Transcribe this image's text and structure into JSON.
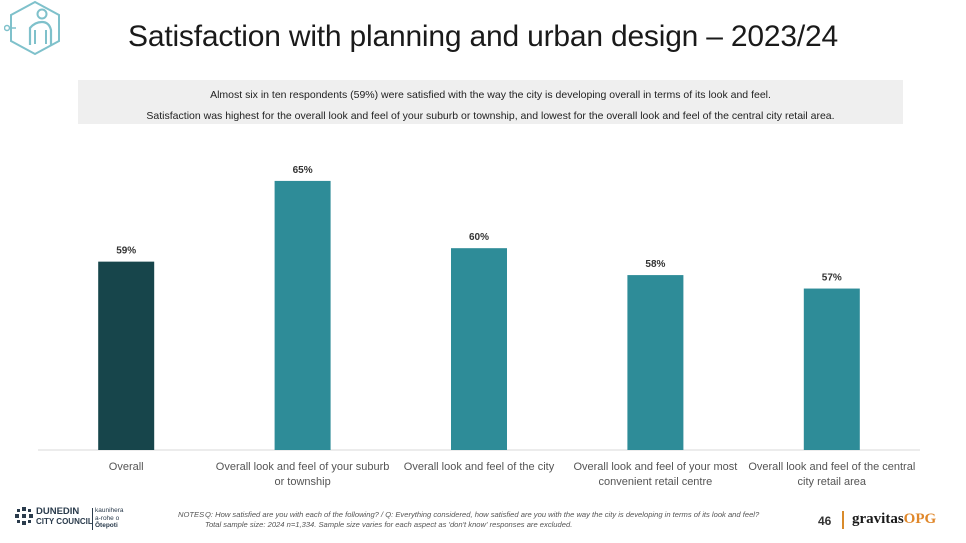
{
  "title": "Satisfaction with planning and urban design – 2023/24",
  "summary": {
    "line1": "Almost six in ten respondents (59%) were satisfied with the way the city is developing overall in terms of its look and feel.",
    "line2": "Satisfaction was highest for the overall look and feel of your suburb or township, and lowest for the overall look and feel of the central city retail area."
  },
  "chart_data": {
    "type": "bar",
    "categories": [
      [
        "Overall"
      ],
      [
        "Overall look and feel of your suburb",
        "or township"
      ],
      [
        "Overall look and feel of the city"
      ],
      [
        "Overall look and feel of your most",
        "convenient retail centre"
      ],
      [
        "Overall look and feel of the central",
        "city retail area"
      ]
    ],
    "values": [
      59,
      65,
      60,
      58,
      57
    ],
    "data_labels": [
      "59%",
      "65%",
      "60%",
      "58%",
      "57%"
    ],
    "colors": [
      "#17454b",
      "#2e8c98",
      "#2e8c98",
      "#2e8c98",
      "#2e8c98"
    ],
    "ylim": [
      45,
      67
    ],
    "grid": false,
    "legend": "none"
  },
  "notes": {
    "label": "NOTES",
    "line1": "Q: How satisfied are you with each of the following?  /  Q: Everything considered, how satisfied are you with the way the city is developing in terms of its look and feel?",
    "line2": "Total sample size: 2024 n=1,334. Sample size varies  for each aspect as 'don't know' responses are excluded."
  },
  "footer": {
    "page_number": "46",
    "brand_main": "gravitas",
    "brand_accent": "OPG",
    "council_line1": "DUNEDIN",
    "council_line2": "CITY COUNCIL",
    "maori_line1": "kaunihera",
    "maori_line2": "a-rohe o",
    "maori_line3": "Ōtepoti"
  },
  "icons": {
    "corner": "hexagon-person-icon",
    "council": "dcc-crest-icon"
  }
}
